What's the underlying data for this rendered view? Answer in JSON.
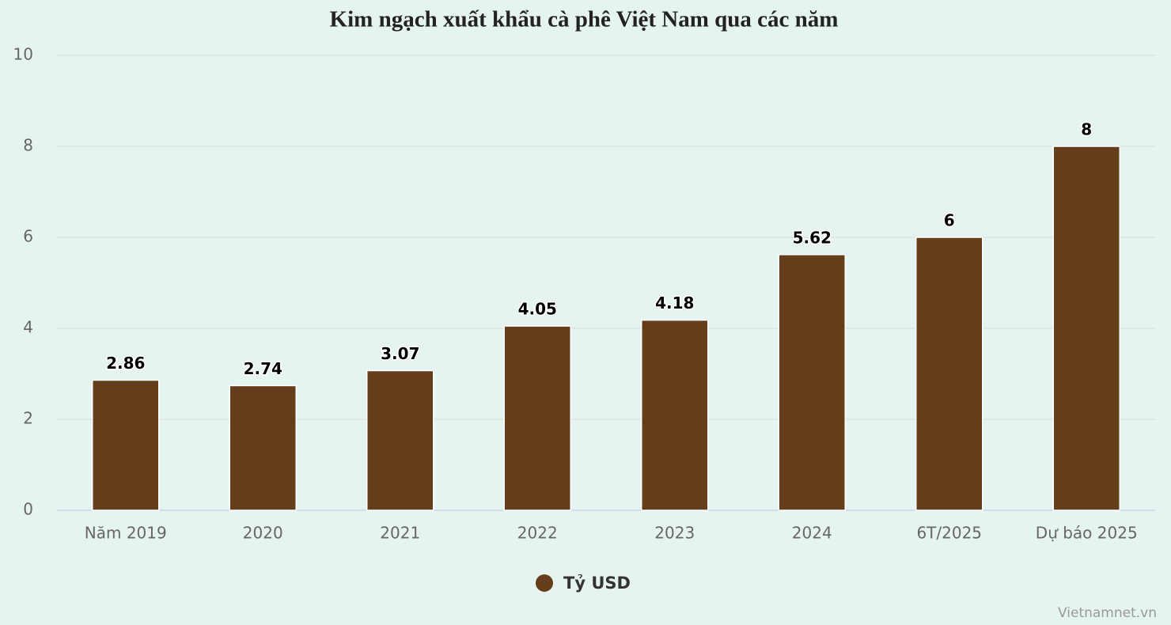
{
  "chart_data": {
    "type": "bar",
    "title": "Kim ngạch xuất khẩu cà phê Việt Nam qua các năm",
    "categories": [
      "Năm 2019",
      "2020",
      "2021",
      "2022",
      "2023",
      "2024",
      "6T/2025",
      "Dự báo 2025"
    ],
    "series": [
      {
        "name": "Tỷ USD",
        "color": "#643d1b",
        "values": [
          2.86,
          2.74,
          3.07,
          4.05,
          4.18,
          5.62,
          6,
          8
        ]
      }
    ],
    "ylim": [
      0,
      10
    ],
    "yticks": [
      0,
      2,
      4,
      6,
      8,
      10
    ],
    "grid": true,
    "legend": "bottom",
    "credit": "Vietnamnet.vn"
  }
}
